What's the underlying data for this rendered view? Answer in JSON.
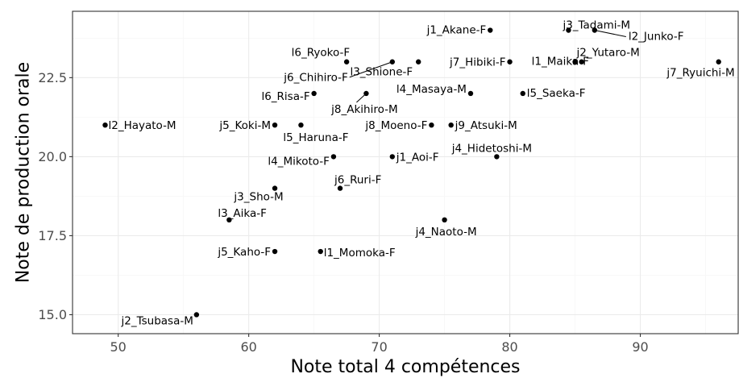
{
  "chart_data": {
    "type": "scatter",
    "xlabel": "Note total 4 compétences",
    "ylabel": "Note de production orale",
    "xlim": [
      46.5,
      97.5
    ],
    "ylim": [
      14.4,
      24.6
    ],
    "x_ticks": [
      50,
      60,
      70,
      80,
      90
    ],
    "y_ticks": [
      15.0,
      17.5,
      20.0,
      22.5
    ],
    "x_tick_labels": [
      "50",
      "60",
      "70",
      "80",
      "90"
    ],
    "y_tick_labels": [
      "15.0",
      "17.5",
      "20.0",
      "22.5"
    ],
    "grid": true,
    "points": [
      {
        "label": "j1_Akane-F",
        "x": 78.5,
        "y": 24.0
      },
      {
        "label": "j3_Tadami-M",
        "x": 84.5,
        "y": 24.0
      },
      {
        "label": "l2_Junko-F",
        "x": 86.5,
        "y": 24.0
      },
      {
        "label": "l1_Maika-F",
        "x": 85.5,
        "y": 23.0
      },
      {
        "label": "j2_Yutaro-M",
        "x": 85.0,
        "y": 23.0
      },
      {
        "label": "j7_Hibiki-F",
        "x": 80.0,
        "y": 23.0
      },
      {
        "label": "j7_Ryuichi-M",
        "x": 96.0,
        "y": 23.0
      },
      {
        "label": "l6_Ryoko-F",
        "x": 67.5,
        "y": 23.0
      },
      {
        "label": "j6_Chihiro-F",
        "x": 71.0,
        "y": 23.0
      },
      {
        "label": "l3_Shione-F",
        "x": 73.0,
        "y": 23.0
      },
      {
        "label": "l4_Masaya-M",
        "x": 77.0,
        "y": 22.0
      },
      {
        "label": "l5_Saeka-F",
        "x": 81.0,
        "y": 22.0
      },
      {
        "label": "l6_Risa-F",
        "x": 65.0,
        "y": 22.0
      },
      {
        "label": "j8_Akihiro-M",
        "x": 69.0,
        "y": 22.0
      },
      {
        "label": "l2_Hayato-M",
        "x": 49.0,
        "y": 21.0
      },
      {
        "label": "j5_Koki-M",
        "x": 62.0,
        "y": 21.0
      },
      {
        "label": "l5_Haruna-F",
        "x": 64.0,
        "y": 21.0
      },
      {
        "label": "j8_Moeno-F",
        "x": 74.0,
        "y": 21.0
      },
      {
        "label": "j9_Atsuki-M",
        "x": 75.5,
        "y": 21.0
      },
      {
        "label": "j4_Hidetoshi-M",
        "x": 79.0,
        "y": 20.0
      },
      {
        "label": "l4_Mikoto-F",
        "x": 66.5,
        "y": 20.0
      },
      {
        "label": "j1_Aoi-F",
        "x": 71.0,
        "y": 20.0
      },
      {
        "label": "j6_Ruri-F",
        "x": 67.0,
        "y": 19.0
      },
      {
        "label": "j3_Sho-M",
        "x": 62.0,
        "y": 19.0
      },
      {
        "label": "l3_Aika-F",
        "x": 58.5,
        "y": 18.0
      },
      {
        "label": "j4_Naoto-M",
        "x": 75.0,
        "y": 18.0
      },
      {
        "label": "j5_Kaho-F",
        "x": 62.0,
        "y": 17.0
      },
      {
        "label": "l1_Momoka-F",
        "x": 65.5,
        "y": 17.0
      },
      {
        "label": "j2_Tsubasa-M",
        "x": 56.0,
        "y": 15.0
      }
    ]
  }
}
